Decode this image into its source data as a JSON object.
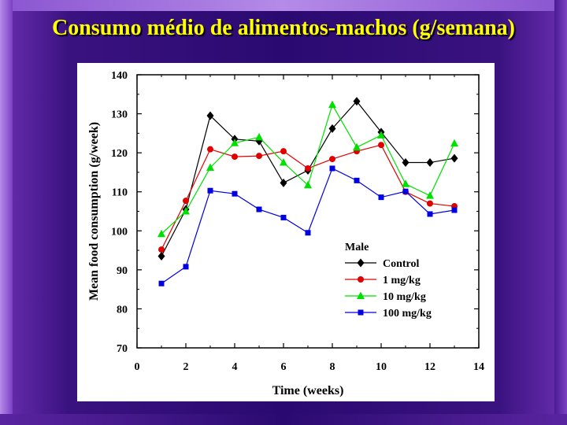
{
  "slide": {
    "title": "Consumo médio de alimentos-machos (g/semana)"
  },
  "colors": {
    "title": "#ffff00",
    "background": "#2a0a70"
  },
  "chart_data": {
    "type": "line",
    "title": "",
    "xlabel": "Time (weeks)",
    "ylabel": "Mean food consumption (g/week)",
    "xlim": [
      0,
      14
    ],
    "ylim": [
      70,
      140
    ],
    "xticks": [
      0,
      2,
      4,
      6,
      8,
      10,
      12,
      14
    ],
    "yticks": [
      70,
      80,
      90,
      100,
      110,
      120,
      130,
      140
    ],
    "grid": false,
    "legend": {
      "title": "Male",
      "position": "lower-right"
    },
    "x": [
      1,
      2,
      3,
      4,
      5,
      6,
      7,
      8,
      9,
      10,
      11,
      12,
      13
    ],
    "series": [
      {
        "name": "Control",
        "color": "#000000",
        "marker": "diamond",
        "values": [
          93.5,
          105.5,
          129.5,
          123.5,
          123.0,
          112.3,
          115.5,
          126.2,
          133.2,
          125.3,
          117.5,
          117.5,
          118.6
        ]
      },
      {
        "name": "1 mg/kg",
        "color": "#e00000",
        "marker": "circle",
        "values": [
          95.2,
          107.7,
          120.9,
          119.0,
          119.2,
          120.4,
          116.0,
          118.4,
          120.4,
          122.0,
          110.0,
          107.0,
          106.3
        ]
      },
      {
        "name": "10 mg/kg",
        "color": "#00e000",
        "marker": "triangle",
        "values": [
          99.2,
          105.0,
          116.2,
          122.5,
          124.0,
          117.5,
          111.7,
          132.3,
          121.4,
          124.5,
          112.0,
          109.0,
          122.4
        ]
      },
      {
        "name": "100 mg/kg",
        "color": "#0000e0",
        "marker": "square",
        "values": [
          86.5,
          90.8,
          110.3,
          109.5,
          105.5,
          103.4,
          99.5,
          116.0,
          112.9,
          108.6,
          110.1,
          104.3,
          105.3
        ]
      }
    ]
  }
}
